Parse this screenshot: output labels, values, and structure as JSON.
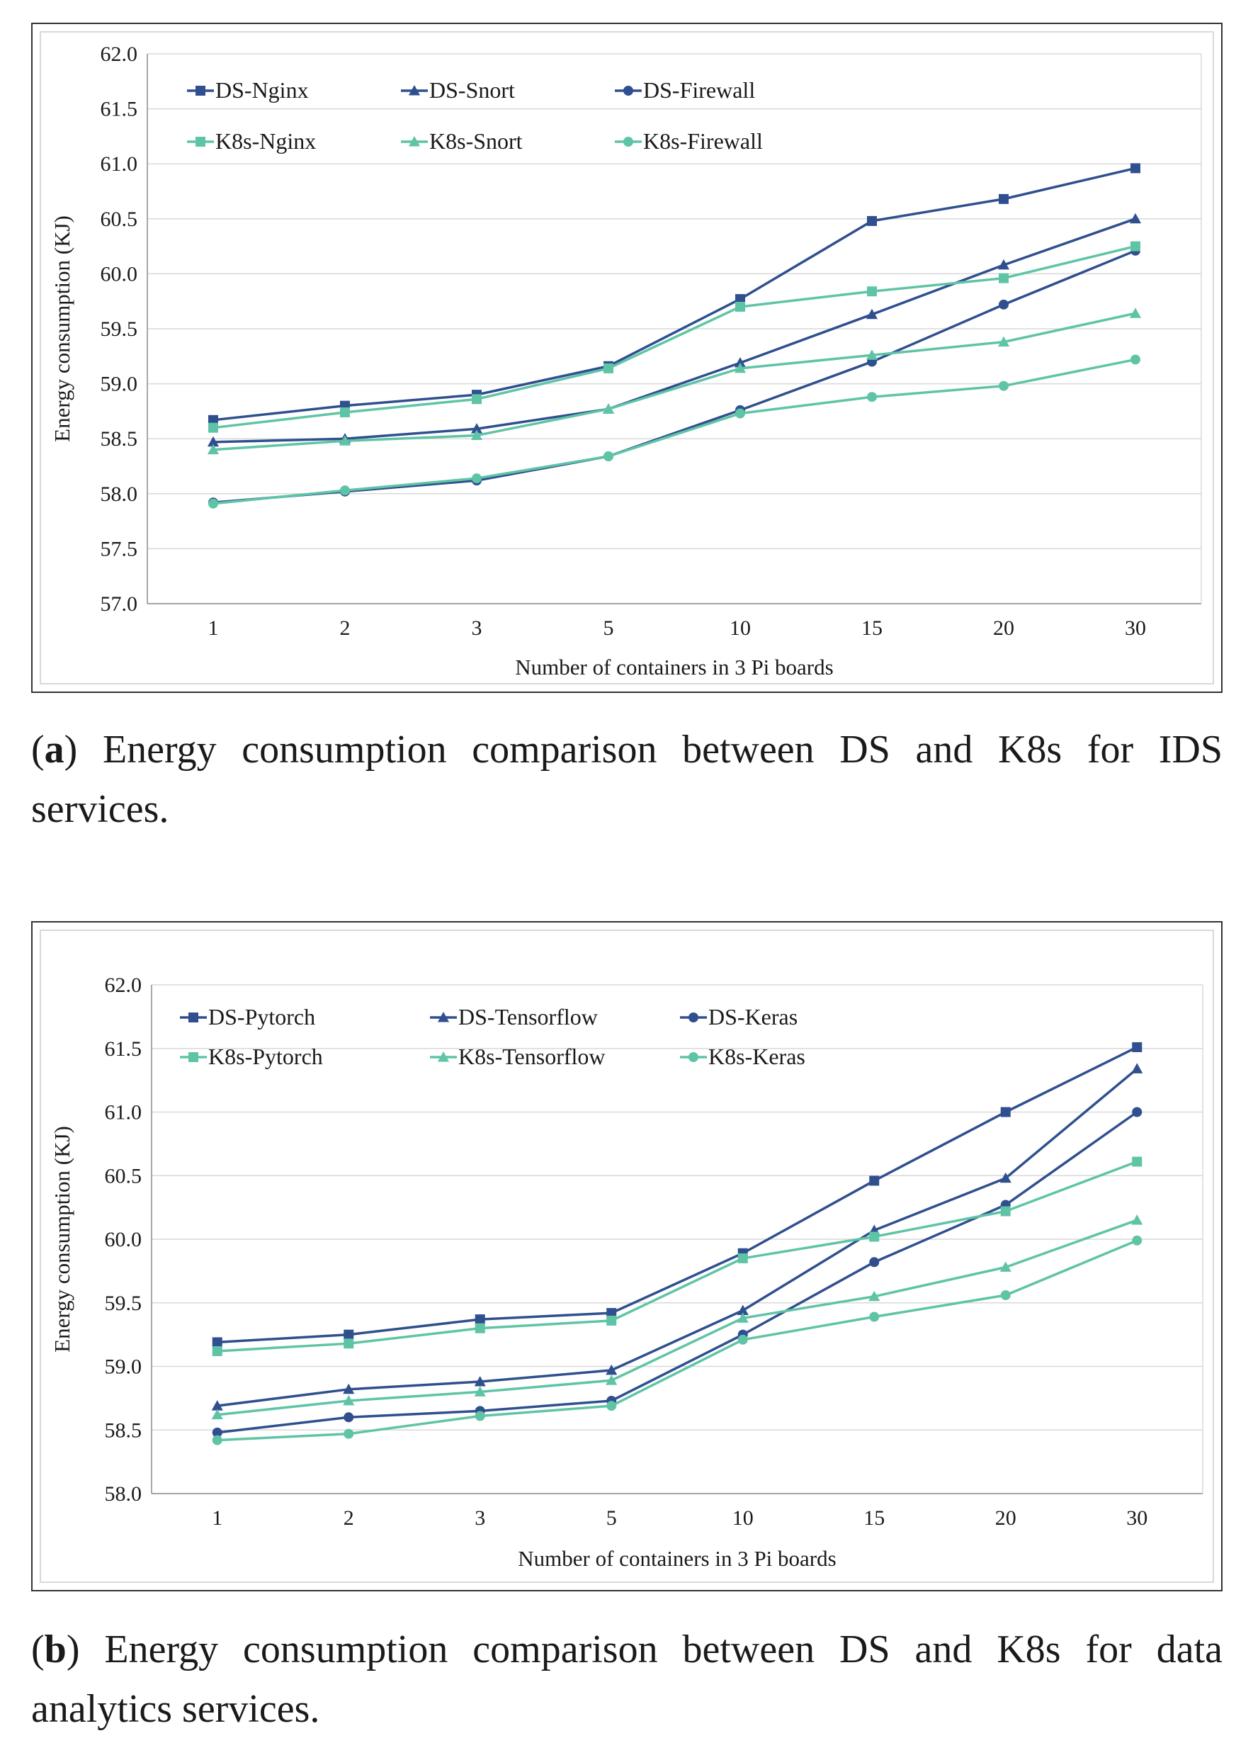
{
  "chart_data": [
    {
      "type": "line",
      "title": "",
      "xlabel": "Number of containers in 3 Pi boards",
      "ylabel": "Energy consumption (KJ)",
      "categories": [
        "1",
        "2",
        "3",
        "5",
        "10",
        "15",
        "20",
        "30"
      ],
      "ylim": [
        57.0,
        62.0
      ],
      "yticks": [
        "57.0",
        "57.5",
        "58.0",
        "58.5",
        "59.0",
        "59.5",
        "60.0",
        "60.5",
        "61.0",
        "61.5",
        "62.0"
      ],
      "grid": true,
      "legend_position": "top, three columns",
      "series": [
        {
          "name": "DS-Nginx",
          "marker": "square",
          "color": "#2f4f8f",
          "values": [
            58.67,
            58.8,
            58.9,
            59.16,
            59.77,
            60.48,
            60.68,
            60.96
          ]
        },
        {
          "name": "DS-Snort",
          "marker": "triangle",
          "color": "#2f4f8f",
          "values": [
            58.47,
            58.5,
            58.59,
            58.77,
            59.19,
            59.63,
            60.08,
            60.5
          ]
        },
        {
          "name": "DS-Firewall",
          "marker": "circle",
          "color": "#2f4f8f",
          "values": [
            57.92,
            58.02,
            58.12,
            58.34,
            58.76,
            59.2,
            59.72,
            60.21
          ]
        },
        {
          "name": "K8s-Nginx",
          "marker": "square",
          "color": "#5fc4a6",
          "values": [
            58.6,
            58.74,
            58.86,
            59.14,
            59.7,
            59.84,
            59.96,
            60.25
          ]
        },
        {
          "name": "K8s-Snort",
          "marker": "triangle",
          "color": "#5fc4a6",
          "values": [
            58.4,
            58.48,
            58.53,
            58.77,
            59.14,
            59.26,
            59.38,
            59.64
          ]
        },
        {
          "name": "K8s-Firewall",
          "marker": "circle",
          "color": "#5fc4a6",
          "values": [
            57.91,
            58.03,
            58.14,
            58.34,
            58.73,
            58.88,
            58.98,
            59.22
          ]
        }
      ]
    },
    {
      "type": "line",
      "title": "",
      "xlabel": "Number of containers in 3 Pi boards",
      "ylabel": "Energy consumption (KJ)",
      "categories": [
        "1",
        "2",
        "3",
        "5",
        "10",
        "15",
        "20",
        "30"
      ],
      "ylim": [
        58.0,
        62.0
      ],
      "yticks": [
        "58.0",
        "58.5",
        "59.0",
        "59.5",
        "60.0",
        "60.5",
        "61.0",
        "61.5",
        "62.0"
      ],
      "grid": true,
      "legend_position": "top, three columns",
      "series": [
        {
          "name": "DS-Pytorch",
          "marker": "square",
          "color": "#2f4f8f",
          "values": [
            59.19,
            59.25,
            59.37,
            59.42,
            59.89,
            60.46,
            61.0,
            61.51
          ]
        },
        {
          "name": "DS-Tensorflow",
          "marker": "triangle",
          "color": "#2f4f8f",
          "values": [
            58.69,
            58.82,
            58.88,
            58.97,
            59.44,
            60.07,
            60.48,
            61.34
          ]
        },
        {
          "name": "DS-Keras",
          "marker": "circle",
          "color": "#2f4f8f",
          "values": [
            58.48,
            58.6,
            58.65,
            58.73,
            59.25,
            59.82,
            60.27,
            61.0
          ]
        },
        {
          "name": "K8s-Pytorch",
          "marker": "square",
          "color": "#5fc4a6",
          "values": [
            59.12,
            59.18,
            59.3,
            59.36,
            59.85,
            60.02,
            60.22,
            60.61
          ]
        },
        {
          "name": "K8s-Tensorflow",
          "marker": "triangle",
          "color": "#5fc4a6",
          "values": [
            58.62,
            58.73,
            58.8,
            58.89,
            59.38,
            59.55,
            59.78,
            60.15
          ]
        },
        {
          "name": "K8s-Keras",
          "marker": "circle",
          "color": "#5fc4a6",
          "values": [
            58.42,
            58.47,
            58.61,
            58.69,
            59.21,
            59.39,
            59.56,
            59.99
          ]
        }
      ]
    }
  ],
  "captions": {
    "a": {
      "label": "a",
      "text": "Energy consumption comparison between DS and K8s for IDS services."
    },
    "b": {
      "label": "b",
      "text": "Energy consumption comparison between DS and K8s for data analytics services."
    }
  }
}
